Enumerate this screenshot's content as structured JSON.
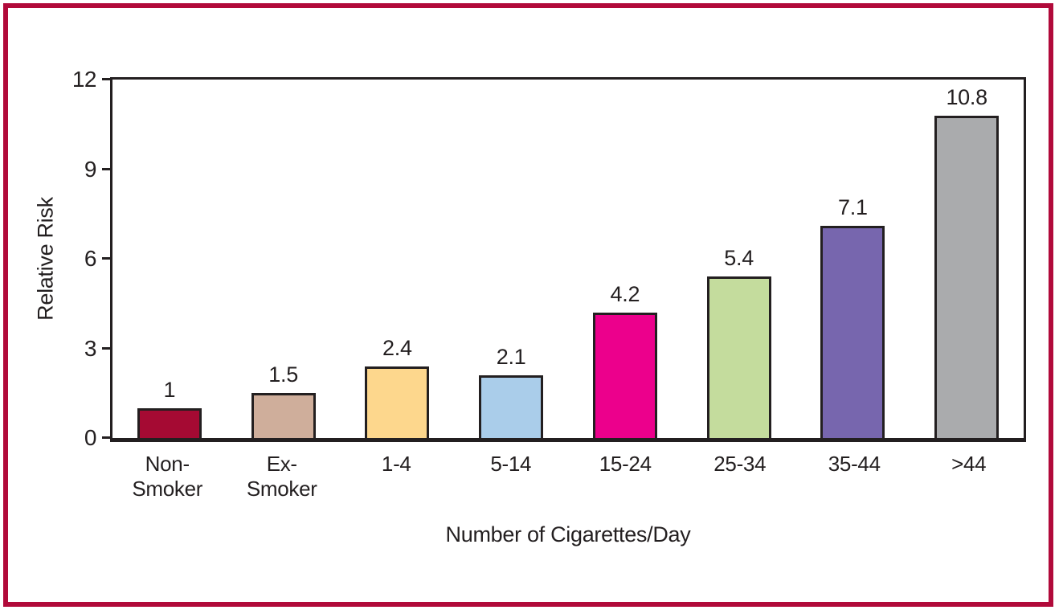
{
  "frame": {
    "border_color": "#b10a3a"
  },
  "chart_data": {
    "type": "bar",
    "title": "",
    "xlabel": "Number of Cigarettes/Day",
    "ylabel": "Relative Risk",
    "categories": [
      "Non-\nSmoker",
      "Ex-\nSmoker",
      "1-4",
      "5-14",
      "15-24",
      "25-34",
      "35-44",
      ">44"
    ],
    "values": [
      1,
      1.5,
      2.4,
      2.1,
      4.2,
      5.4,
      7.1,
      10.8
    ],
    "value_labels": [
      "1",
      "1.5",
      "2.4",
      "2.1",
      "4.2",
      "5.4",
      "7.1",
      "10.8"
    ],
    "bar_colors": [
      "#a50a33",
      "#cfae9b",
      "#fdd78d",
      "#aacdea",
      "#ec008c",
      "#c4dc9d",
      "#7766ae",
      "#aaabad"
    ],
    "bar_border_color": "#231f20",
    "axis_color": "#231f20",
    "text_color": "#231f20",
    "ylim": [
      0,
      12
    ],
    "yticks": [
      12,
      9,
      6,
      3,
      0
    ],
    "grid": false,
    "legend": "none"
  }
}
